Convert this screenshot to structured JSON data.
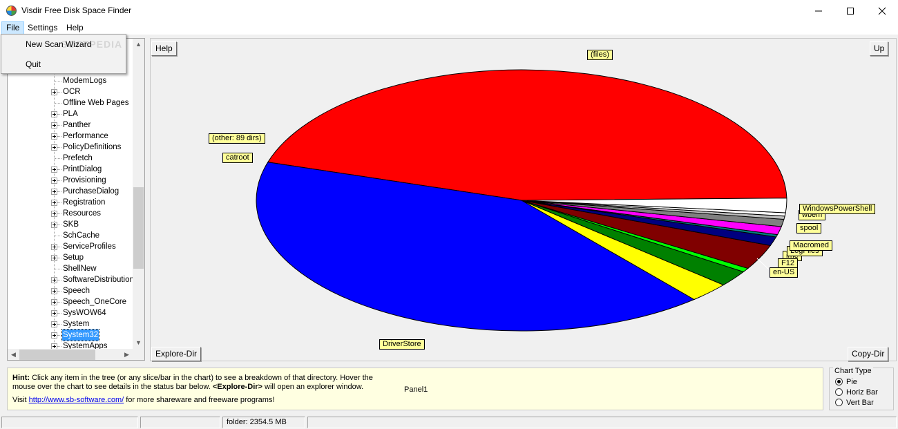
{
  "window": {
    "title": "Visdir Free Disk Space Finder"
  },
  "menu": {
    "items": [
      "File",
      "Settings",
      "Help"
    ]
  },
  "file_menu": {
    "items": [
      "New Scan Wizard",
      "Quit"
    ]
  },
  "watermark": "SOFTPEDIA",
  "tree": {
    "items": [
      {
        "label": "ModemLogs",
        "expandable": false
      },
      {
        "label": "OCR",
        "expandable": true
      },
      {
        "label": "Offline Web Pages",
        "expandable": false
      },
      {
        "label": "PLA",
        "expandable": true
      },
      {
        "label": "Panther",
        "expandable": true
      },
      {
        "label": "Performance",
        "expandable": true
      },
      {
        "label": "PolicyDefinitions",
        "expandable": true
      },
      {
        "label": "Prefetch",
        "expandable": false
      },
      {
        "label": "PrintDialog",
        "expandable": true
      },
      {
        "label": "Provisioning",
        "expandable": true
      },
      {
        "label": "PurchaseDialog",
        "expandable": true
      },
      {
        "label": "Registration",
        "expandable": true
      },
      {
        "label": "Resources",
        "expandable": true
      },
      {
        "label": "SKB",
        "expandable": true
      },
      {
        "label": "SchCache",
        "expandable": false
      },
      {
        "label": "ServiceProfiles",
        "expandable": true
      },
      {
        "label": "Setup",
        "expandable": true
      },
      {
        "label": "ShellNew",
        "expandable": false
      },
      {
        "label": "SoftwareDistribution",
        "expandable": true
      },
      {
        "label": "Speech",
        "expandable": true
      },
      {
        "label": "Speech_OneCore",
        "expandable": true
      },
      {
        "label": "SysWOW64",
        "expandable": true
      },
      {
        "label": "System",
        "expandable": true
      },
      {
        "label": "System32",
        "expandable": true,
        "selected": true
      },
      {
        "label": "SystemApps",
        "expandable": true
      }
    ]
  },
  "chart_buttons": {
    "help": "Help",
    "up": "Up",
    "explore_dir": "Explore-Dir",
    "copy_dir": "Copy-Dir"
  },
  "chart_data": {
    "type": "pie",
    "slices": [
      {
        "label": "(files)",
        "value": 45.0,
        "color": "#ff0000"
      },
      {
        "label": "DriverStore",
        "value": 41.0,
        "color": "#0000ff"
      },
      {
        "label": "catroot",
        "value": 2.5,
        "color": "#ffff00"
      },
      {
        "label": "(other: 89 dirs)",
        "value": 2.0,
        "color": "#008000"
      },
      {
        "label": "WindowsPowerShell",
        "value": 0.5,
        "color": "#00ff00"
      },
      {
        "label": "wbem",
        "value": 3.1,
        "color": "#800000"
      },
      {
        "label": "spool",
        "value": 1.1,
        "color": "#000080"
      },
      {
        "label": "",
        "value": 0.3,
        "color": "#008080"
      },
      {
        "label": "Macromed",
        "value": 1.0,
        "color": "#ff00ff"
      },
      {
        "label": "LogFiles",
        "value": 0.9,
        "color": "#808080"
      },
      {
        "label": "",
        "value": 0.4,
        "color": "#c0c0c0"
      },
      {
        "label": "F12",
        "value": 0.4,
        "color": "#ffffff"
      },
      {
        "label": "en-US",
        "value": 1.8,
        "color": "#ffffff"
      }
    ],
    "hidden_labels": [
      "ime"
    ]
  },
  "hint": {
    "bold_prefix": "Hint:",
    "line1": " Click any item in the tree (or any slice/bar in the chart) to see a breakdown of that directory. Hover the mouse over the chart to see details in the status bar below. ",
    "bold_mid": "<Explore-Dir>",
    "line1_end": " will open an explorer window.",
    "visit_prefix": "Visit ",
    "link": "http://www.sb-software.com/",
    "visit_suffix": " for more shareware and freeware programs!",
    "panel_label": "Panel1"
  },
  "chart_type": {
    "legend": "Chart Type",
    "options": [
      "Pie",
      "Horiz Bar",
      "Vert Bar"
    ],
    "selected": "Pie"
  },
  "status": {
    "folder": "folder: 2354.5 MB"
  }
}
